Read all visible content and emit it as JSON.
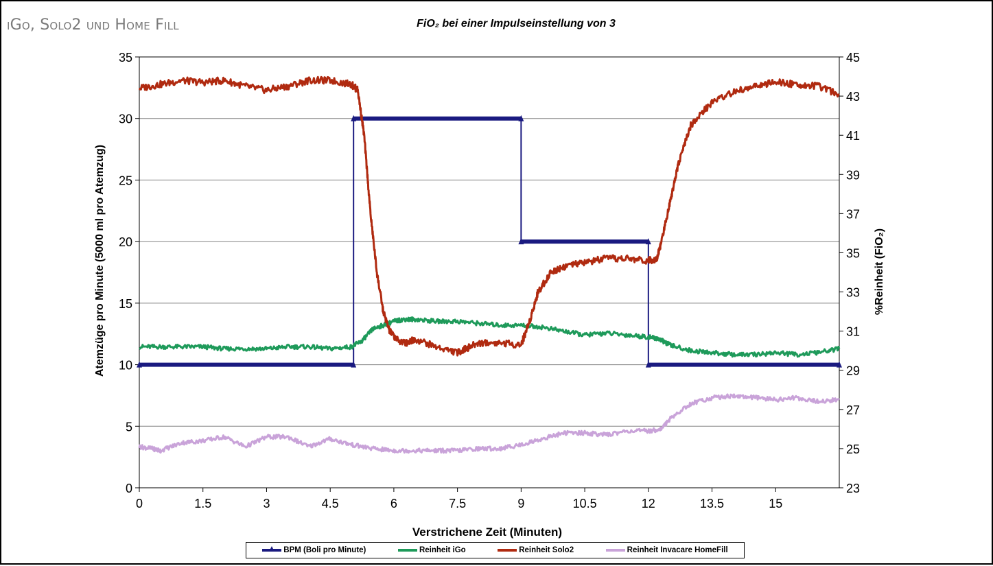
{
  "heading": "iGo, Solo2 und Home Fill",
  "chart_data": {
    "type": "line",
    "title": "FiO₂ bei einer Impulseinstellung von 3",
    "xlabel": "Verstrichene Zeit (Minuten)",
    "ylabel_left": "Atemzüge pro Minute (5000 ml pro Atemzug)",
    "ylabel_right": "%Reinheit (FiO₂)",
    "xlim": [
      0,
      16.5
    ],
    "ylim_left": [
      0,
      35
    ],
    "ylim_right": [
      23,
      45
    ],
    "x_ticks": [
      "0",
      "1.5",
      "3",
      "4.5",
      "6",
      "7.5",
      "9",
      "10.5",
      "12",
      "13.5",
      "15"
    ],
    "y_ticks_left": [
      "0",
      "5",
      "10",
      "15",
      "20",
      "25",
      "30",
      "35"
    ],
    "y_ticks_right": [
      "23",
      "25",
      "27",
      "29",
      "31",
      "33",
      "35",
      "37",
      "39",
      "41",
      "43",
      "45"
    ],
    "grid": "horizontal",
    "legend_position": "bottom",
    "series": [
      {
        "name": "BPM (Boli pro Minute)",
        "axis": "left",
        "color": "#1a1a80",
        "x": [
          0,
          5.05,
          5.05,
          9.0,
          9.0,
          12.0,
          12.0,
          16.5
        ],
        "y": [
          10,
          10,
          30,
          30,
          20,
          20,
          10,
          10
        ]
      },
      {
        "name": "Reinheit iGo",
        "axis": "right",
        "color": "#1e9a5a",
        "x": [
          0,
          0.5,
          1,
          1.5,
          2,
          2.5,
          3,
          3.5,
          4,
          4.5,
          5,
          5.25,
          5.5,
          5.75,
          6,
          6.25,
          6.5,
          7,
          7.5,
          8,
          8.5,
          9,
          9.5,
          10,
          10.5,
          11,
          11.5,
          12,
          12.25,
          12.5,
          13,
          13.5,
          14,
          14.5,
          15,
          15.5,
          16,
          16.5
        ],
        "y": [
          30.2,
          30.2,
          30.2,
          30.2,
          30.1,
          30.1,
          30.1,
          30.2,
          30.2,
          30.1,
          30.2,
          30.5,
          31.1,
          31.3,
          31.5,
          31.6,
          31.6,
          31.5,
          31.5,
          31.4,
          31.3,
          31.3,
          31.2,
          31.0,
          30.8,
          30.9,
          30.8,
          30.7,
          30.6,
          30.3,
          30.0,
          29.9,
          29.8,
          29.8,
          29.9,
          29.8,
          29.9,
          30.1
        ]
      },
      {
        "name": "Reinheit Solo2",
        "axis": "right",
        "color": "#b02a10",
        "x": [
          0,
          0.5,
          1,
          1.5,
          2,
          2.5,
          3,
          3.5,
          4,
          4.5,
          5,
          5.15,
          5.3,
          5.45,
          5.6,
          5.75,
          5.9,
          6.1,
          6.3,
          6.5,
          7,
          7.5,
          7.7,
          8,
          8.5,
          9,
          9.2,
          9.4,
          9.7,
          10,
          10.5,
          11,
          11.5,
          12,
          12.2,
          12.3,
          12.5,
          12.7,
          13,
          13.5,
          14,
          14.5,
          15,
          15.5,
          16,
          16.5
        ],
        "y": [
          43.4,
          43.6,
          43.8,
          43.7,
          43.8,
          43.5,
          43.3,
          43.5,
          43.8,
          43.8,
          43.6,
          43.3,
          41.0,
          37.0,
          34.0,
          32.0,
          31.0,
          30.5,
          30.4,
          30.6,
          30.2,
          29.9,
          30.1,
          30.4,
          30.4,
          30.3,
          31.5,
          33.0,
          34.0,
          34.3,
          34.5,
          34.7,
          34.7,
          34.6,
          34.7,
          35.5,
          37.5,
          39.5,
          41.5,
          42.7,
          43.2,
          43.5,
          43.7,
          43.6,
          43.5,
          43.1
        ]
      },
      {
        "name": "Reinheit Invacare HomeFill",
        "axis": "right",
        "color": "#c9a3d9",
        "x": [
          0,
          0.3,
          0.5,
          1,
          1.5,
          2,
          2.5,
          3,
          3.5,
          4,
          4.5,
          5,
          5.5,
          6,
          6.5,
          7,
          7.5,
          8,
          8.5,
          9,
          9.5,
          10,
          10.5,
          11,
          11.5,
          12,
          12.3,
          12.5,
          13,
          13.5,
          14,
          14.5,
          15,
          15.5,
          16,
          16.5
        ],
        "y": [
          25.1,
          25.0,
          24.9,
          25.3,
          25.4,
          25.6,
          25.1,
          25.6,
          25.6,
          25.1,
          25.5,
          25.2,
          25.0,
          24.9,
          24.9,
          24.9,
          24.9,
          25.0,
          25.0,
          25.2,
          25.5,
          25.8,
          25.8,
          25.7,
          25.9,
          25.9,
          26.0,
          26.5,
          27.3,
          27.6,
          27.7,
          27.6,
          27.5,
          27.6,
          27.4,
          27.5
        ]
      }
    ]
  }
}
